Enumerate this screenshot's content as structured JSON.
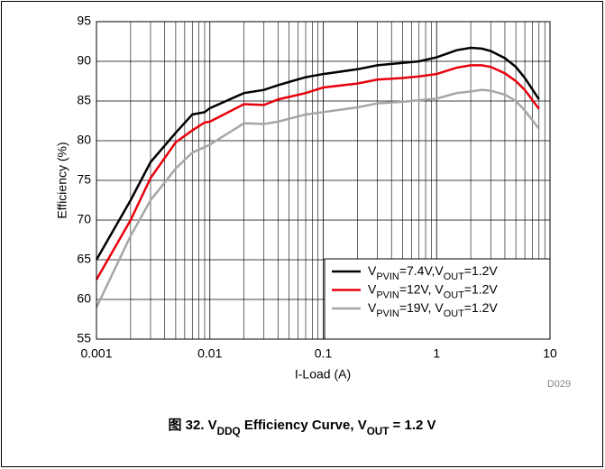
{
  "chart_data": {
    "type": "line",
    "x_label": "I-Load (A)",
    "y_label": "Efficiency (%)",
    "annotation": "D029",
    "caption": "图 32. VDDQ Efficiency Curve, VOUT = 1.2 V",
    "xscale": "log",
    "xlim": [
      0.001,
      10
    ],
    "xticks": [
      0.001,
      0.01,
      0.1,
      1,
      10
    ],
    "ylim": [
      55,
      95
    ],
    "yticks": [
      55,
      60,
      65,
      70,
      75,
      80,
      85,
      90,
      95
    ],
    "grid": true,
    "minor_grid": true,
    "legend": "lower right",
    "series": [
      {
        "name": "VPVIN=7.4V,VOUT=1.2V",
        "color": "#000000",
        "x": [
          0.001,
          0.002,
          0.003,
          0.005,
          0.007,
          0.009,
          0.01,
          0.02,
          0.03,
          0.04,
          0.05,
          0.07,
          0.1,
          0.2,
          0.3,
          0.5,
          0.7,
          1,
          1.5,
          2,
          2.5,
          3,
          4,
          5,
          6,
          8
        ],
        "values": [
          65,
          72.5,
          77.3,
          81,
          83.3,
          83.6,
          84.1,
          86,
          86.4,
          87,
          87.4,
          88,
          88.4,
          89,
          89.5,
          89.8,
          90,
          90.5,
          91.4,
          91.7,
          91.6,
          91.3,
          90.4,
          89.3,
          87.9,
          85.2
        ]
      },
      {
        "name": "VPVIN=12V, VOUT=1.2V",
        "color": "#e8000b",
        "x": [
          0.001,
          0.002,
          0.003,
          0.005,
          0.007,
          0.009,
          0.01,
          0.02,
          0.03,
          0.04,
          0.07,
          0.1,
          0.2,
          0.3,
          0.5,
          0.7,
          1,
          1.5,
          2,
          2.5,
          3,
          4,
          5,
          6,
          8
        ],
        "values": [
          62.5,
          70,
          75.3,
          79.8,
          81.3,
          82.3,
          82.4,
          84.6,
          84.5,
          85.2,
          86,
          86.7,
          87.2,
          87.7,
          87.9,
          88.1,
          88.4,
          89.2,
          89.5,
          89.5,
          89.3,
          88.5,
          87.5,
          86.4,
          84
        ]
      },
      {
        "name": "VPVIN=19V, VOUT=1.2V",
        "color": "#a6a6a6",
        "x": [
          0.001,
          0.002,
          0.003,
          0.005,
          0.007,
          0.01,
          0.02,
          0.03,
          0.04,
          0.07,
          0.1,
          0.2,
          0.3,
          0.5,
          0.7,
          1,
          1.5,
          2,
          2.5,
          3,
          4,
          5,
          6,
          8
        ],
        "values": [
          59,
          68,
          72.5,
          76.5,
          78.5,
          79.5,
          82.2,
          82.1,
          82.4,
          83.3,
          83.6,
          84.2,
          84.7,
          84.9,
          85.1,
          85.3,
          86,
          86.2,
          86.4,
          86.3,
          85.8,
          85,
          83.8,
          81.5
        ]
      }
    ]
  }
}
